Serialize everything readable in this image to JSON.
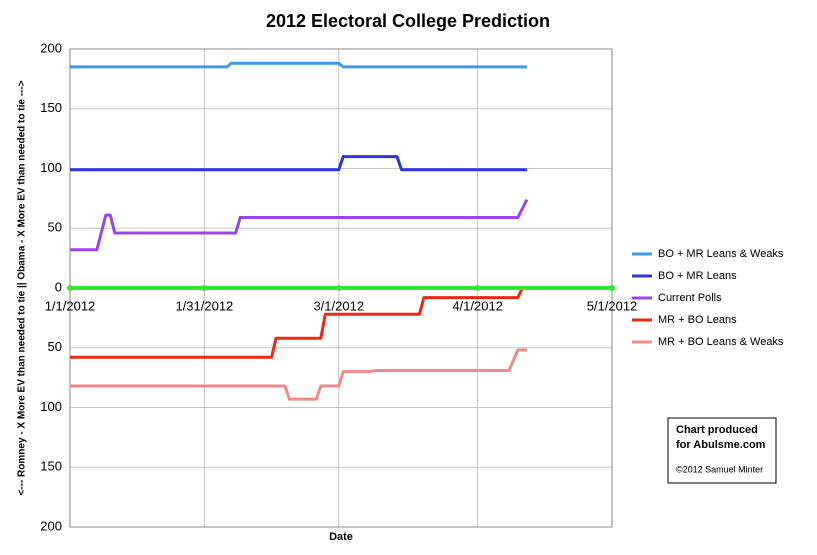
{
  "chart_data": {
    "type": "line",
    "title": "2012 Electoral College Prediction",
    "x_label": "Date",
    "y_label": "<--- Romney - X More EV than needed to tie  ||  Obama - X More EV than needed to tie --->",
    "xlim": [
      "1/1/2012",
      "5/1/2012"
    ],
    "xticks": [
      "1/1/2012",
      "1/31/2012",
      "3/1/2012",
      "4/1/2012",
      "5/1/2012"
    ],
    "ylim": [
      -200,
      200
    ],
    "yticks": [
      {
        "value": -200,
        "label": "200"
      },
      {
        "value": -150,
        "label": "150"
      },
      {
        "value": -100,
        "label": "100"
      },
      {
        "value": -50,
        "label": "50"
      },
      0,
      50,
      100,
      150,
      200
    ],
    "grid": true,
    "zero_line_color": "#33e833",
    "legend": "right",
    "series": [
      {
        "name": "BO + MR Leans & Weaks",
        "color": "#3d9be8",
        "x": [
          "1/1/2012",
          "2/5/2012",
          "2/6/2012",
          "3/1/2012",
          "3/2/2012",
          "4/12/2012"
        ],
        "values": [
          185,
          185,
          188,
          188,
          185,
          185
        ]
      },
      {
        "name": "BO + MR Leans",
        "color": "#2a35e0",
        "x": [
          "1/1/2012",
          "3/1/2012",
          "3/2/2012",
          "3/14/2012",
          "3/15/2012",
          "4/12/2012"
        ],
        "values": [
          99,
          99,
          110,
          110,
          99,
          99
        ]
      },
      {
        "name": "Current Polls",
        "color": "#9a44ec",
        "x": [
          "1/1/2012",
          "1/7/2012",
          "1/9/2012",
          "1/10/2012",
          "1/11/2012",
          "2/7/2012",
          "2/8/2012",
          "4/10/2012",
          "4/12/2012"
        ],
        "values": [
          32,
          32,
          61,
          61,
          46,
          46,
          59,
          59,
          74
        ]
      },
      {
        "name": "MR + BO Leans",
        "color": "#ec2a14",
        "x": [
          "1/1/2012",
          "2/15/2012",
          "2/16/2012",
          "2/26/2012",
          "2/27/2012",
          "3/19/2012",
          "3/20/2012",
          "4/10/2012",
          "4/11/2012",
          "4/12/2012"
        ],
        "values": [
          -58,
          -58,
          -42,
          -42,
          -22,
          -22,
          -8,
          -8,
          0,
          0
        ]
      },
      {
        "name": "MR + BO Leans & Weaks",
        "color": "#f08a84",
        "x": [
          "1/1/2012",
          "2/18/2012",
          "2/19/2012",
          "2/25/2012",
          "2/26/2012",
          "3/1/2012",
          "3/2/2012",
          "3/8/2012",
          "3/9/2012",
          "4/8/2012",
          "4/10/2012",
          "4/12/2012"
        ],
        "values": [
          -82,
          -82,
          -93,
          -93,
          -82,
          -82,
          -70,
          -70,
          -69,
          -69,
          -52,
          -52
        ]
      }
    ],
    "annotation": [
      "Chart produced",
      "for Abulsme.com",
      "©2012 Samuel Minter"
    ]
  }
}
